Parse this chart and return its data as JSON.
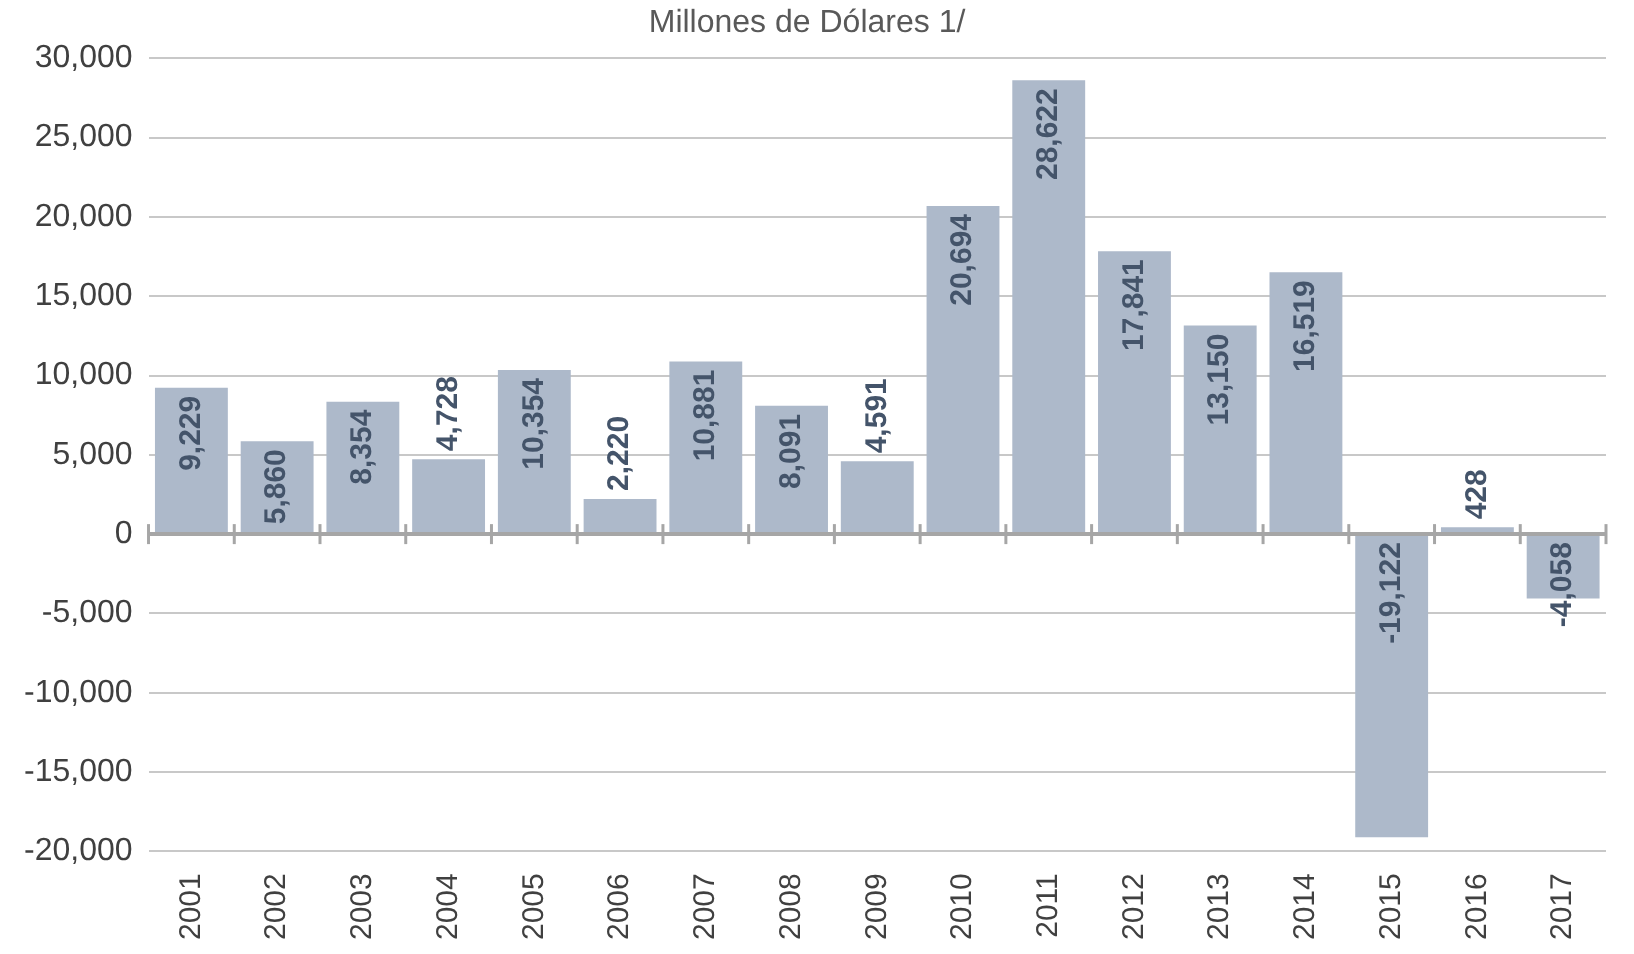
{
  "chart_data": {
    "type": "bar",
    "title": "Millones de Dólares 1/",
    "categories": [
      "2001",
      "2002",
      "2003",
      "2004",
      "2005",
      "2006",
      "2007",
      "2008",
      "2009",
      "2010",
      "2011",
      "2012",
      "2013",
      "2014",
      "2015",
      "2016",
      "2017"
    ],
    "values": [
      9229,
      5860,
      8354,
      4728,
      10354,
      2220,
      10881,
      8091,
      4591,
      20694,
      28622,
      17841,
      13150,
      16519,
      -19122,
      428,
      -4058
    ],
    "value_labels": [
      "9,229",
      "5,860",
      "8,354",
      "4,728",
      "10,354",
      "2,220",
      "10,881",
      "8,091",
      "4,591",
      "20,694",
      "28,622",
      "17,841",
      "13,150",
      "16,519",
      "-19,122",
      "428",
      "-4,058"
    ],
    "color": "#adb9ca",
    "ylim": [
      -20000,
      30000
    ],
    "yticks": [
      {
        "value": -20000,
        "label": "-20,000"
      },
      {
        "value": -15000,
        "label": "-15,000"
      },
      {
        "value": -10000,
        "label": "-10,000"
      },
      {
        "value": -5000,
        "label": "-5,000"
      },
      {
        "value": 0,
        "label": "0"
      },
      {
        "value": 5000,
        "label": "5,000"
      },
      {
        "value": 10000,
        "label": "10,000"
      },
      {
        "value": 15000,
        "label": "15,000"
      },
      {
        "value": 20000,
        "label": "20,000"
      },
      {
        "value": 25000,
        "label": "25,000"
      },
      {
        "value": 30000,
        "label": "30,000"
      }
    ],
    "grid": "y"
  }
}
